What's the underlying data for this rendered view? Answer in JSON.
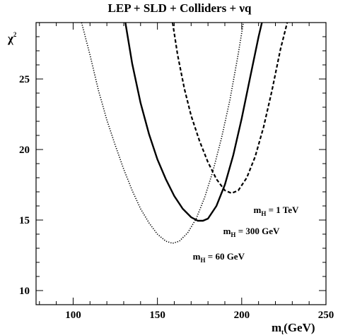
{
  "chart_data": {
    "type": "line",
    "title": "LEP + SLD + Colliders + νq",
    "xlabel": {
      "main": "m",
      "sub": "t",
      "unit": "(GeV)"
    },
    "ylabel": {
      "main": "χ",
      "sup": "2"
    },
    "xlim": [
      78,
      250
    ],
    "ylim": [
      9.0,
      29.0
    ],
    "x_ticks": [
      100,
      150,
      200,
      250
    ],
    "y_ticks": [
      10,
      15,
      20,
      25
    ],
    "grid": false,
    "series": [
      {
        "key": "h60",
        "style": "dotted",
        "color": "#000000",
        "points": [
          [
            105,
            29.0
          ],
          [
            110,
            26.7
          ],
          [
            115,
            24.2
          ],
          [
            120,
            22.1
          ],
          [
            125,
            20.3
          ],
          [
            130,
            18.6
          ],
          [
            135,
            17.1
          ],
          [
            140,
            15.8
          ],
          [
            145,
            14.8
          ],
          [
            150,
            14.0
          ],
          [
            155,
            13.5
          ],
          [
            159,
            13.35
          ],
          [
            163,
            13.5
          ],
          [
            168,
            14.1
          ],
          [
            173,
            15.1
          ],
          [
            178,
            16.6
          ],
          [
            183,
            18.5
          ],
          [
            188,
            20.8
          ],
          [
            193,
            23.5
          ],
          [
            198,
            26.8
          ],
          [
            201,
            29.0
          ]
        ]
      },
      {
        "key": "h300",
        "style": "solid",
        "color": "#000000",
        "points": [
          [
            131,
            29.0
          ],
          [
            135,
            26.1
          ],
          [
            140,
            23.3
          ],
          [
            145,
            21.1
          ],
          [
            150,
            19.3
          ],
          [
            155,
            17.9
          ],
          [
            160,
            16.7
          ],
          [
            165,
            15.8
          ],
          [
            170,
            15.2
          ],
          [
            174,
            14.95
          ],
          [
            177,
            14.95
          ],
          [
            180,
            15.1
          ],
          [
            185,
            16.0
          ],
          [
            190,
            17.5
          ],
          [
            195,
            19.6
          ],
          [
            200,
            22.2
          ],
          [
            205,
            25.1
          ],
          [
            210,
            28.0
          ],
          [
            212,
            29.0
          ]
        ]
      },
      {
        "key": "h1000",
        "style": "dashed",
        "color": "#000000",
        "points": [
          [
            159,
            29.0
          ],
          [
            162,
            26.7
          ],
          [
            166,
            24.3
          ],
          [
            170,
            22.4
          ],
          [
            175,
            20.6
          ],
          [
            180,
            19.1
          ],
          [
            185,
            17.9
          ],
          [
            190,
            17.1
          ],
          [
            194,
            16.9
          ],
          [
            198,
            17.1
          ],
          [
            203,
            18.0
          ],
          [
            208,
            19.5
          ],
          [
            213,
            21.6
          ],
          [
            218,
            24.2
          ],
          [
            223,
            27.1
          ],
          [
            227,
            29.0
          ]
        ]
      }
    ],
    "annotations": [
      {
        "main": "m",
        "sub": "H",
        "text": " = 1 TeV",
        "x": 207,
        "y": 15.5
      },
      {
        "main": "m",
        "sub": "H",
        "text": " = 300 GeV",
        "x": 189,
        "y": 14.0
      },
      {
        "main": "m",
        "sub": "H",
        "text": " = 60 GeV",
        "x": 171,
        "y": 12.2
      }
    ]
  }
}
